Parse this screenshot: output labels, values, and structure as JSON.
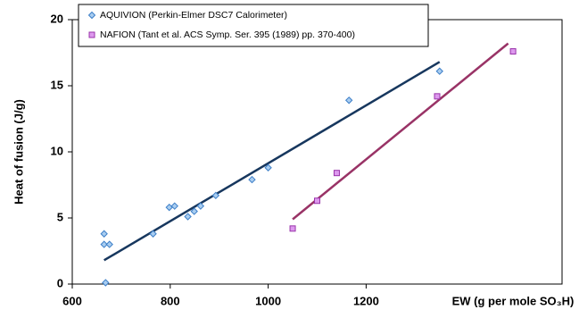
{
  "chart_data": {
    "type": "scatter",
    "x_label": "EW (g per mole SO₃H)",
    "y_label": "Heat of fusion (J/g)",
    "xlim": [
      600,
      1600
    ],
    "ylim": [
      0,
      20
    ],
    "xticks": [
      600,
      800,
      1000,
      1200
    ],
    "yticks": [
      0,
      5,
      10,
      15,
      20
    ],
    "grid": false,
    "legend": "top-left",
    "series": [
      {
        "name": "AQUIVION (Perkin-Elmer DSC7 Calorimeter)",
        "color": "#3d7fc8",
        "fill": "#a9cdf0",
        "x": [
          668,
          665,
          665,
          676,
          765,
          798,
          809,
          836,
          849,
          862,
          893,
          967,
          1000,
          1165,
          1350
        ],
        "values": [
          0.1,
          3.8,
          3.0,
          3.0,
          3.8,
          5.8,
          5.9,
          5.1,
          5.5,
          5.9,
          6.7,
          7.9,
          8.8,
          13.9,
          16.1
        ]
      },
      {
        "name": "NAFION (Tant et al. ACS Symp. Ser. 395 (1989) pp. 370-400)",
        "color": "#9933aa",
        "fill": "#dd99ee",
        "x": [
          1050,
          1100,
          1140,
          1345,
          1500
        ],
        "values": [
          4.2,
          6.3,
          8.4,
          14.2,
          17.6
        ]
      }
    ],
    "trendlines": [
      {
        "color": "#17375e",
        "x": [
          665,
          1350
        ],
        "values": [
          1.8,
          16.8
        ]
      },
      {
        "color": "#993366",
        "x": [
          1050,
          1490
        ],
        "values": [
          4.9,
          18.2
        ]
      }
    ]
  }
}
